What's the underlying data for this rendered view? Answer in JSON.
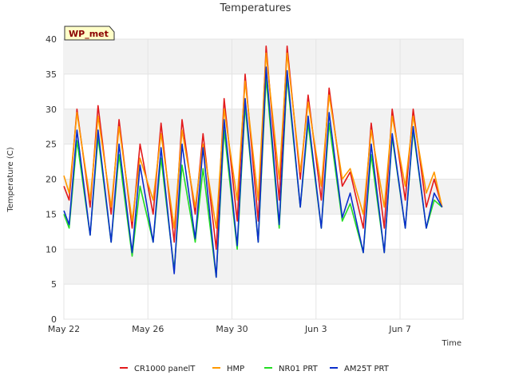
{
  "chart_data": {
    "type": "line",
    "title": "Temperatures",
    "xlabel": "Time",
    "ylabel": "Temperature (C)",
    "badge": "WP_met",
    "ylim": [
      0,
      40
    ],
    "yticks": [
      0,
      5,
      10,
      15,
      20,
      25,
      30,
      35,
      40
    ],
    "xlim": [
      "2023-05-22",
      "2023-06-10"
    ],
    "xticks": [
      {
        "label": "May 22",
        "date": "2023-05-22"
      },
      {
        "label": "May 26",
        "date": "2023-05-26"
      },
      {
        "label": "May 30",
        "date": "2023-05-30"
      },
      {
        "label": "Jun 3",
        "date": "2023-06-03"
      },
      {
        "label": "Jun 7",
        "date": "2023-06-07"
      }
    ],
    "grid": true,
    "legend_position": "bottom",
    "series": [
      {
        "name": "CR1000 panelT",
        "color": "#e31a1c",
        "x": [
          "2023-05-22 00:00",
          "2023-05-22 06:00",
          "2023-05-22 15:00",
          "2023-05-23 06:00",
          "2023-05-23 15:00",
          "2023-05-24 06:00",
          "2023-05-24 15:00",
          "2023-05-25 06:00",
          "2023-05-25 15:00",
          "2023-05-26 06:00",
          "2023-05-26 15:00",
          "2023-05-27 06:00",
          "2023-05-27 15:00",
          "2023-05-28 06:00",
          "2023-05-28 15:00",
          "2023-05-29 06:00",
          "2023-05-29 15:00",
          "2023-05-30 06:00",
          "2023-05-30 15:00",
          "2023-05-31 06:00",
          "2023-05-31 15:00",
          "2023-06-01 06:00",
          "2023-06-01 15:00",
          "2023-06-02 06:00",
          "2023-06-02 15:00",
          "2023-06-03 06:00",
          "2023-06-03 15:00",
          "2023-06-04 06:00",
          "2023-06-04 15:00",
          "2023-06-05 06:00",
          "2023-06-05 15:00",
          "2023-06-06 06:00",
          "2023-06-06 15:00",
          "2023-06-07 06:00",
          "2023-06-07 15:00",
          "2023-06-08 06:00",
          "2023-06-08 15:00",
          "2023-06-09 00:00"
        ],
        "y": [
          19,
          17,
          30,
          16,
          30.5,
          15,
          28.5,
          13,
          25,
          15,
          28,
          11,
          28.5,
          15,
          26.5,
          10,
          31.5,
          14,
          35,
          14,
          39,
          17,
          39,
          20,
          32,
          17,
          33,
          19,
          21,
          13,
          28,
          13,
          30,
          17,
          30,
          16,
          20,
          16
        ]
      },
      {
        "name": "HMP",
        "color": "#ff9900",
        "x": [
          "2023-05-22 00:00",
          "2023-05-22 06:00",
          "2023-05-22 15:00",
          "2023-05-23 06:00",
          "2023-05-23 15:00",
          "2023-05-24 06:00",
          "2023-05-24 15:00",
          "2023-05-25 06:00",
          "2023-05-25 15:00",
          "2023-05-26 06:00",
          "2023-05-26 15:00",
          "2023-05-27 06:00",
          "2023-05-27 15:00",
          "2023-05-28 06:00",
          "2023-05-28 15:00",
          "2023-05-29 06:00",
          "2023-05-29 15:00",
          "2023-05-30 06:00",
          "2023-05-30 15:00",
          "2023-05-31 06:00",
          "2023-05-31 15:00",
          "2023-06-01 06:00",
          "2023-06-01 15:00",
          "2023-06-02 06:00",
          "2023-06-02 15:00",
          "2023-06-03 06:00",
          "2023-06-03 15:00",
          "2023-06-04 06:00",
          "2023-06-04 15:00",
          "2023-06-05 06:00",
          "2023-06-05 15:00",
          "2023-06-06 06:00",
          "2023-06-06 15:00",
          "2023-06-07 06:00",
          "2023-06-07 15:00",
          "2023-06-08 06:00",
          "2023-06-08 15:00",
          "2023-06-09 00:00"
        ],
        "y": [
          20.5,
          18,
          29.5,
          17,
          29,
          16,
          27.5,
          14,
          23,
          17,
          26.5,
          13,
          27,
          16,
          25,
          13,
          30,
          17,
          34,
          17,
          38,
          20,
          38,
          21,
          31,
          19,
          32,
          20,
          21.5,
          15,
          27,
          16,
          29,
          19,
          29,
          18,
          21,
          16
        ]
      },
      {
        "name": "NR01 PRT",
        "color": "#22dd22",
        "x": [
          "2023-05-22 00:00",
          "2023-05-22 06:00",
          "2023-05-22 15:00",
          "2023-05-23 06:00",
          "2023-05-23 15:00",
          "2023-05-24 06:00",
          "2023-05-24 15:00",
          "2023-05-25 06:00",
          "2023-05-25 15:00",
          "2023-05-26 06:00",
          "2023-05-26 15:00",
          "2023-05-27 06:00",
          "2023-05-27 15:00",
          "2023-05-28 06:00",
          "2023-05-28 15:00",
          "2023-05-29 06:00",
          "2023-05-29 15:00",
          "2023-05-30 06:00",
          "2023-05-30 15:00",
          "2023-05-31 06:00",
          "2023-05-31 15:00",
          "2023-06-01 06:00",
          "2023-06-01 15:00",
          "2023-06-02 06:00",
          "2023-06-02 15:00",
          "2023-06-03 06:00",
          "2023-06-03 15:00",
          "2023-06-04 06:00",
          "2023-06-04 15:00",
          "2023-06-05 06:00",
          "2023-06-05 15:00",
          "2023-06-06 06:00",
          "2023-06-06 15:00",
          "2023-06-07 06:00",
          "2023-06-07 15:00",
          "2023-06-08 06:00",
          "2023-06-08 15:00",
          "2023-06-09 00:00"
        ],
        "y": [
          15,
          13,
          25.5,
          12,
          26,
          11,
          23.5,
          9,
          19,
          11,
          23,
          7,
          22,
          11,
          21.5,
          6,
          27,
          10,
          30.5,
          11,
          34.5,
          13,
          34.5,
          16,
          28,
          13,
          28,
          14,
          16.5,
          9.5,
          23.5,
          9.5,
          26,
          13,
          27,
          13,
          17,
          16
        ]
      },
      {
        "name": "AM25T PRT",
        "color": "#0a2ecc",
        "x": [
          "2023-05-22 00:00",
          "2023-05-22 06:00",
          "2023-05-22 15:00",
          "2023-05-23 06:00",
          "2023-05-23 15:00",
          "2023-05-24 06:00",
          "2023-05-24 15:00",
          "2023-05-25 06:00",
          "2023-05-25 15:00",
          "2023-05-26 06:00",
          "2023-05-26 15:00",
          "2023-05-27 06:00",
          "2023-05-27 15:00",
          "2023-05-28 06:00",
          "2023-05-28 15:00",
          "2023-05-29 06:00",
          "2023-05-29 15:00",
          "2023-05-30 06:00",
          "2023-05-30 15:00",
          "2023-05-31 06:00",
          "2023-05-31 15:00",
          "2023-06-01 06:00",
          "2023-06-01 15:00",
          "2023-06-02 06:00",
          "2023-06-02 15:00",
          "2023-06-03 06:00",
          "2023-06-03 15:00",
          "2023-06-04 06:00",
          "2023-06-04 15:00",
          "2023-06-05 06:00",
          "2023-06-05 15:00",
          "2023-06-06 06:00",
          "2023-06-06 15:00",
          "2023-06-07 06:00",
          "2023-06-07 15:00",
          "2023-06-08 06:00",
          "2023-06-08 15:00",
          "2023-06-09 00:00"
        ],
        "y": [
          15.5,
          13.5,
          27,
          12,
          27,
          11,
          25,
          9.5,
          22,
          11,
          24.5,
          6.5,
          25,
          11.5,
          24.5,
          6,
          28.5,
          10.5,
          31.5,
          11,
          36,
          13.5,
          35.5,
          16,
          29,
          13,
          29.5,
          14.5,
          18,
          9.5,
          25,
          9.5,
          26.5,
          13,
          27.5,
          13,
          18,
          16
        ]
      }
    ]
  }
}
